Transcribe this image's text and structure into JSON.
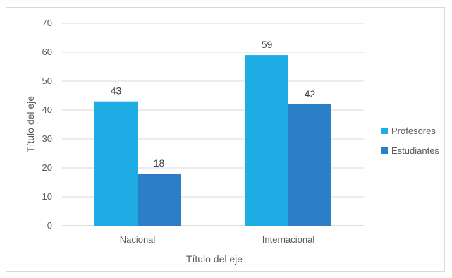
{
  "chart_data": {
    "type": "bar",
    "categories": [
      "Nacional",
      "Internacional"
    ],
    "series": [
      {
        "name": "Profesores",
        "values": [
          43,
          59
        ],
        "color": "#1dace4"
      },
      {
        "name": "Estudiantes",
        "values": [
          18,
          42
        ],
        "color": "#2b7fc6"
      }
    ],
    "title": "",
    "xlabel": "Título del eje",
    "ylabel": "Título del eje",
    "ylim": [
      0,
      70
    ],
    "yticks": [
      0,
      10,
      20,
      30,
      40,
      50,
      60,
      70
    ],
    "grid": true,
    "legend": "right"
  }
}
